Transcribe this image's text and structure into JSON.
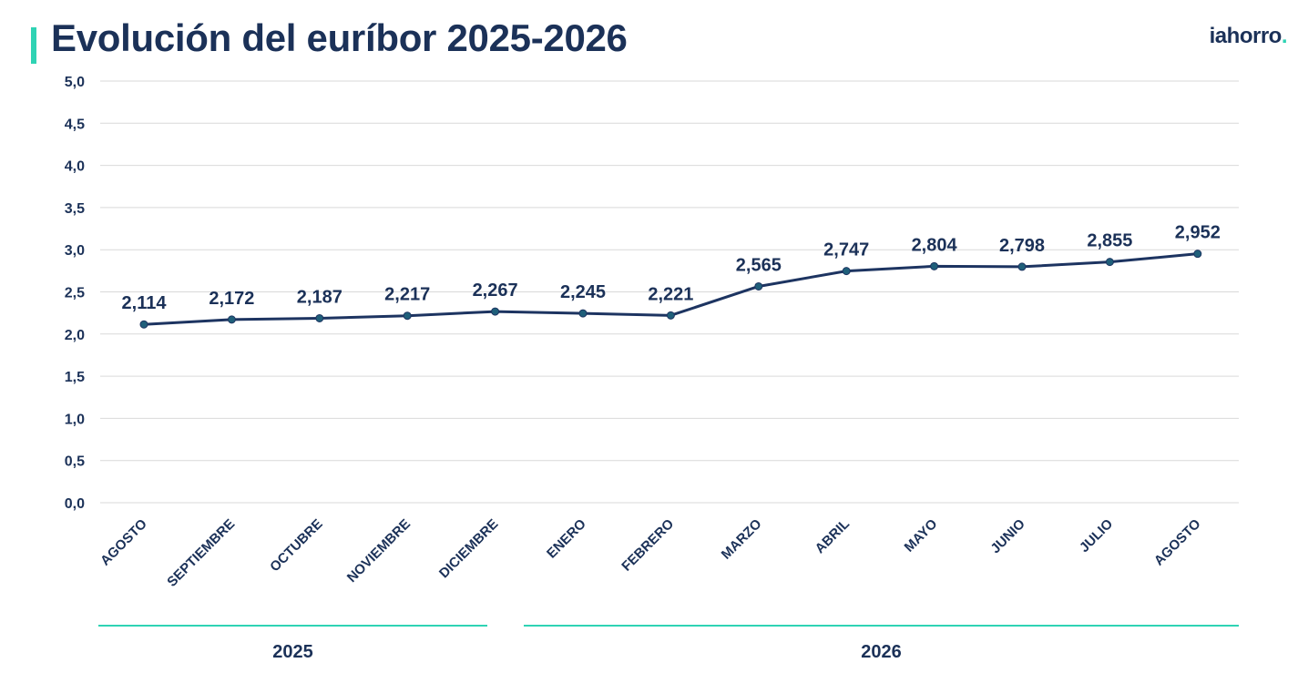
{
  "header": {
    "title": "Evolución del euríbor 2025-2026",
    "logo_text": "iahorro",
    "logo_dot": "."
  },
  "colors": {
    "line": "#1d3461",
    "marker": "#1f5f7a",
    "grid": "#d9d9d9",
    "accent": "#2fd3b4",
    "text": "#1b3158"
  },
  "chart_data": {
    "type": "line",
    "title": "Evolución del euríbor 2025-2026",
    "categories": [
      "AGOSTO",
      "SEPTIEMBRE",
      "OCTUBRE",
      "NOVIEMBRE",
      "DICIEMBRE",
      "ENERO",
      "FEBRERO",
      "MARZO",
      "ABRIL",
      "MAYO",
      "JUNIO",
      "JULIO",
      "AGOSTO"
    ],
    "series": [
      {
        "values": [
          2.114,
          2.172,
          2.187,
          2.217,
          2.267,
          2.245,
          2.221,
          2.565,
          2.747,
          2.804,
          2.798,
          2.855,
          2.952
        ],
        "data_labels": [
          "2,114",
          "2,172",
          "2,187",
          "2,217",
          "2,267",
          "2,245",
          "2,221",
          "2,565",
          "2,747",
          "2,804",
          "2,798",
          "2,855",
          "2,952"
        ]
      }
    ],
    "ylim": [
      0,
      5
    ],
    "yticks": [
      0,
      0.5,
      1,
      1.5,
      2,
      2.5,
      3,
      3.5,
      4,
      4.5,
      5
    ],
    "ytick_labels": [
      "0,0",
      "0,5",
      "1,0",
      "1,5",
      "2,0",
      "2,5",
      "3,0",
      "3,5",
      "4,0",
      "4,5",
      "5,0"
    ],
    "grid": true,
    "xlabel": "",
    "ylabel": "",
    "year_groups": [
      {
        "label": "2025",
        "from": 0,
        "to": 4
      },
      {
        "label": "2026",
        "from": 5,
        "to": 12
      }
    ]
  }
}
